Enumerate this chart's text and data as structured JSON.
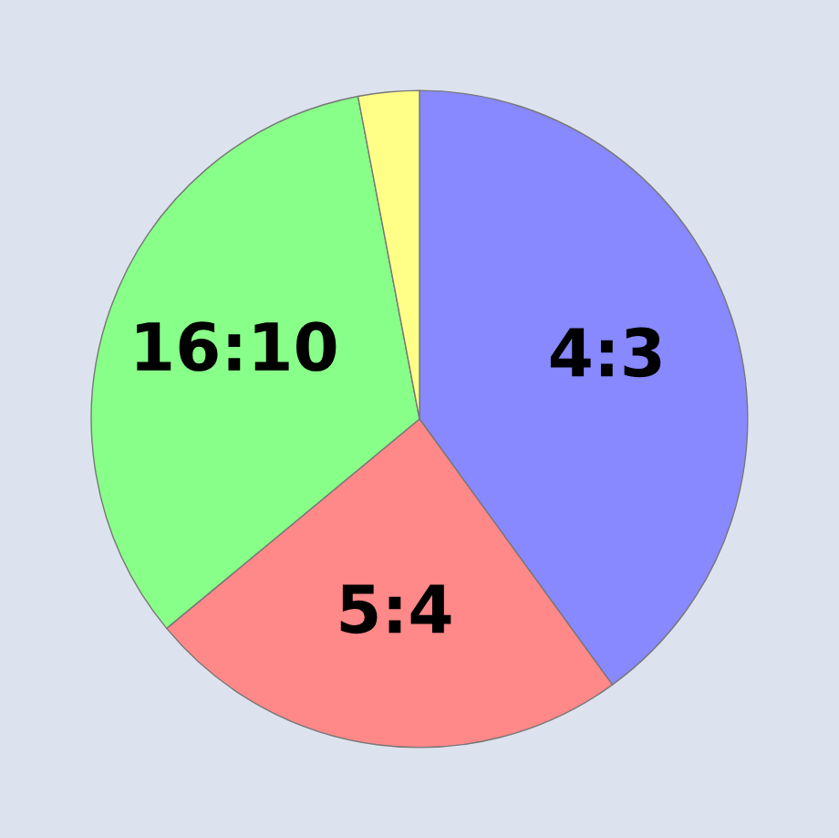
{
  "chart_data": {
    "type": "pie",
    "categories": [
      "4:3",
      "5:4",
      "16:10",
      null
    ],
    "values": [
      40,
      24,
      33,
      3
    ],
    "colors": [
      "#8888ff",
      "#ff8888",
      "#88ff88",
      "#ffff88"
    ]
  }
}
